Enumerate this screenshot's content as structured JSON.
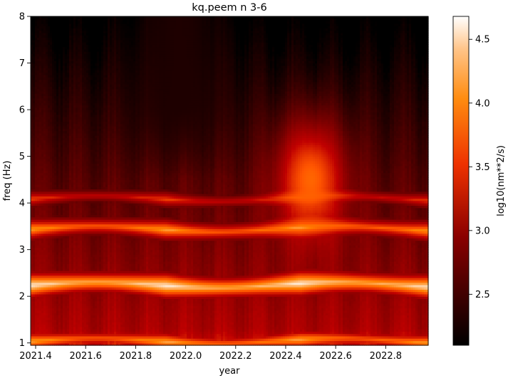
{
  "chart_data": {
    "type": "heatmap",
    "title": "kq.peem n 3-6",
    "xlabel": "year",
    "ylabel": "freq (Hz)",
    "colorbar_label": "log10(nm**2/s)",
    "colormap": "gist_heat",
    "xlim": [
      2021.38,
      2022.97
    ],
    "ylim": [
      0.95,
      8.0
    ],
    "clim": [
      2.1,
      4.68
    ],
    "x_ticks": [
      2021.4,
      2021.6,
      2021.8,
      2022.0,
      2022.2,
      2022.4,
      2022.6,
      2022.8
    ],
    "x_tick_labels": [
      "2021.4",
      "2021.6",
      "2021.8",
      "2022.0",
      "2022.2",
      "2022.4",
      "2022.6",
      "2022.8"
    ],
    "y_ticks": [
      1,
      2,
      3,
      4,
      5,
      6,
      7,
      8
    ],
    "y_tick_labels": [
      "1",
      "2",
      "3",
      "4",
      "5",
      "6",
      "7",
      "8"
    ],
    "colorbar_ticks": [
      2.5,
      3.0,
      3.5,
      4.0,
      4.5
    ],
    "colorbar_tick_labels": [
      "2.5",
      "3.0",
      "3.5",
      "4.0",
      "4.5"
    ],
    "grid": false,
    "features": [
      {
        "kind": "band",
        "freq_hz": 2.25,
        "peak_value": 4.6
      },
      {
        "kind": "band",
        "freq_hz": 3.45,
        "peak_value": 4.2
      },
      {
        "kind": "band",
        "freq_hz": 1.05,
        "peak_value": 4.1
      },
      {
        "kind": "band",
        "freq_hz": 4.1,
        "peak_value": 3.75
      },
      {
        "kind": "low",
        "x_center": 2021.97,
        "freq_min_hz": 5.0,
        "freq_max_hz": 8.0,
        "value": 2.3
      },
      {
        "kind": "high",
        "x_center": 2022.5,
        "freq_min_hz": 3.0,
        "freq_max_hz": 6.0,
        "value": 3.9
      }
    ]
  }
}
